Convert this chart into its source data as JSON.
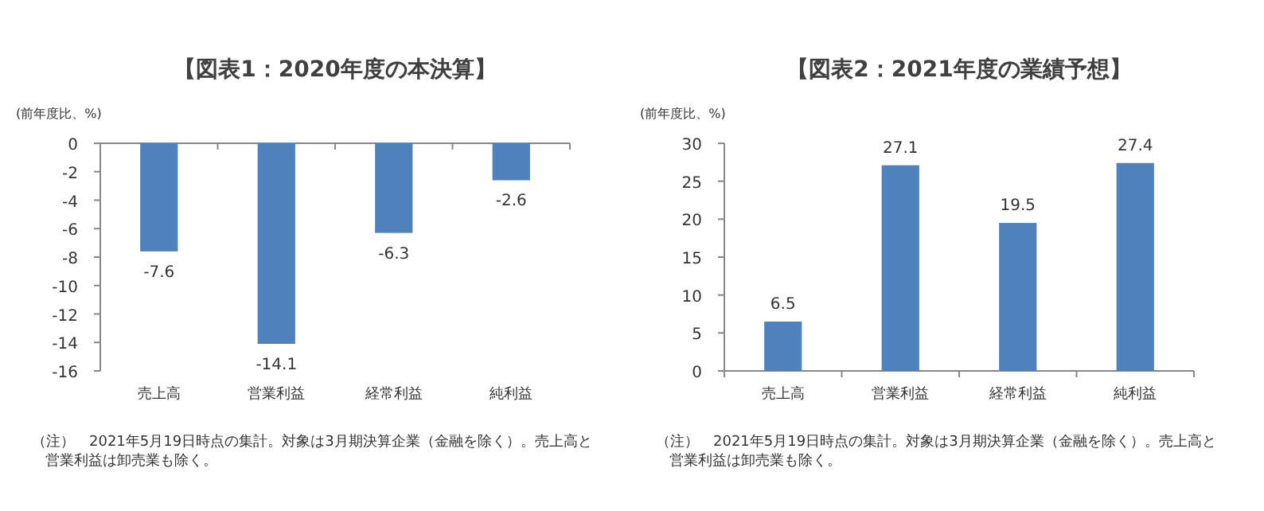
{
  "chart_data": [
    {
      "type": "bar",
      "title": "【図表1：2020年度の本決算】",
      "ylabel": "(前年度比、%)",
      "categories": [
        "売上高",
        "営業利益",
        "経常利益",
        "純利益"
      ],
      "values": [
        -7.6,
        -14.1,
        -6.3,
        -2.6
      ],
      "color": "#4f81bd",
      "ylim": [
        -16,
        0
      ],
      "yticks": [
        -16,
        -14,
        -12,
        -10,
        -8,
        -6,
        -4,
        -2,
        0
      ],
      "data_labels": true,
      "annotations": [
        "（注）　2021年5月19日時点の集計。対象は3月期決算企業（金融を除く）。売上高と営業利益は卸売業も除く。"
      ]
    },
    {
      "type": "bar",
      "title": "【図表2：2021年度の業績予想】",
      "ylabel": "(前年度比、%)",
      "categories": [
        "売上高",
        "営業利益",
        "経常利益",
        "純利益"
      ],
      "values": [
        6.5,
        27.1,
        19.5,
        27.4
      ],
      "color": "#4f81bd",
      "ylim": [
        0,
        30
      ],
      "yticks": [
        0,
        5,
        10,
        15,
        20,
        25,
        30
      ],
      "data_labels": true,
      "annotations": [
        "（注）　2021年5月19日時点の集計。対象は3月期決算企業（金融を除く）。売上高と営業利益は卸売業も除く。"
      ]
    }
  ]
}
